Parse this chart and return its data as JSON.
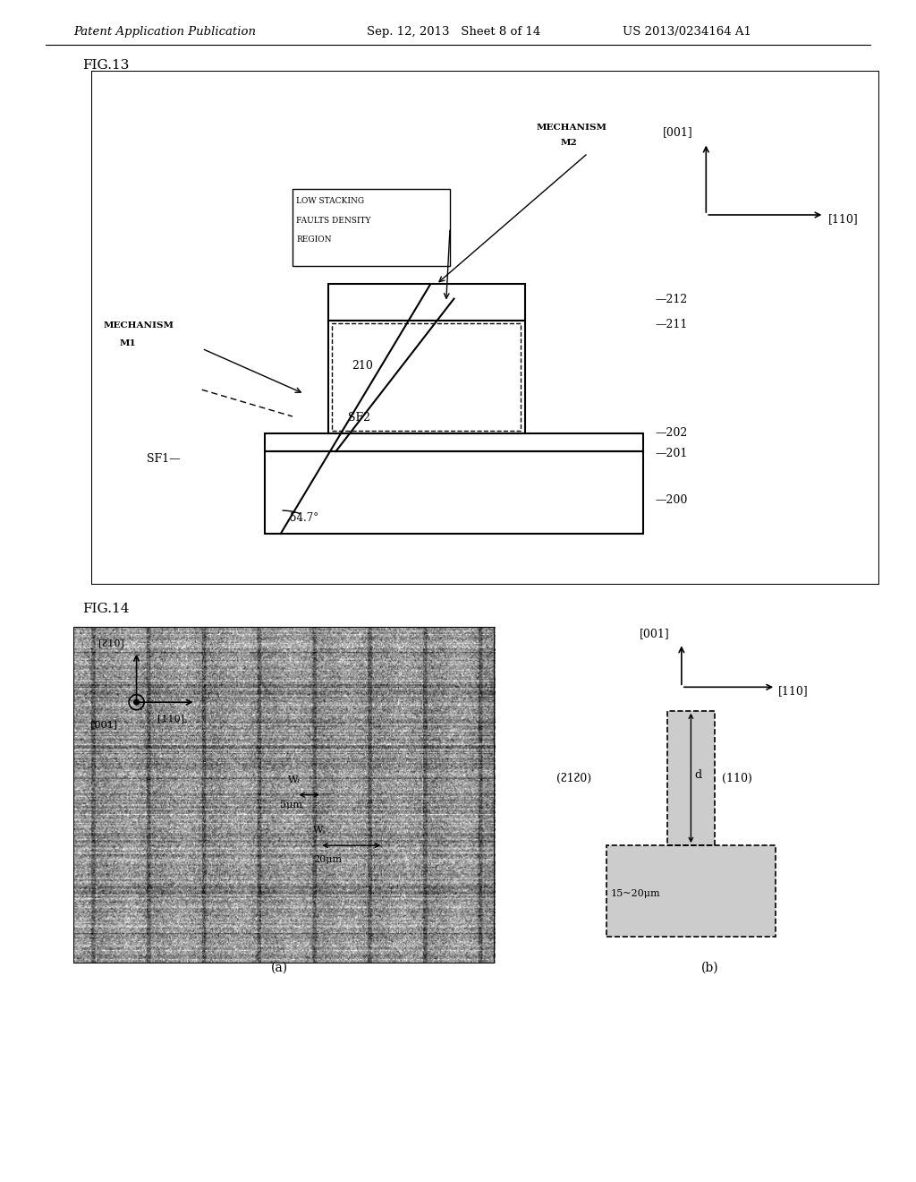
{
  "header_left": "Patent Application Publication",
  "header_mid": "Sep. 12, 2013   Sheet 8 of 14",
  "header_right": "US 2013/0234164 A1",
  "fig13_label": "FIG.13",
  "fig14_label": "FIG.14",
  "bg_color": "#ffffff",
  "text_color": "#000000"
}
